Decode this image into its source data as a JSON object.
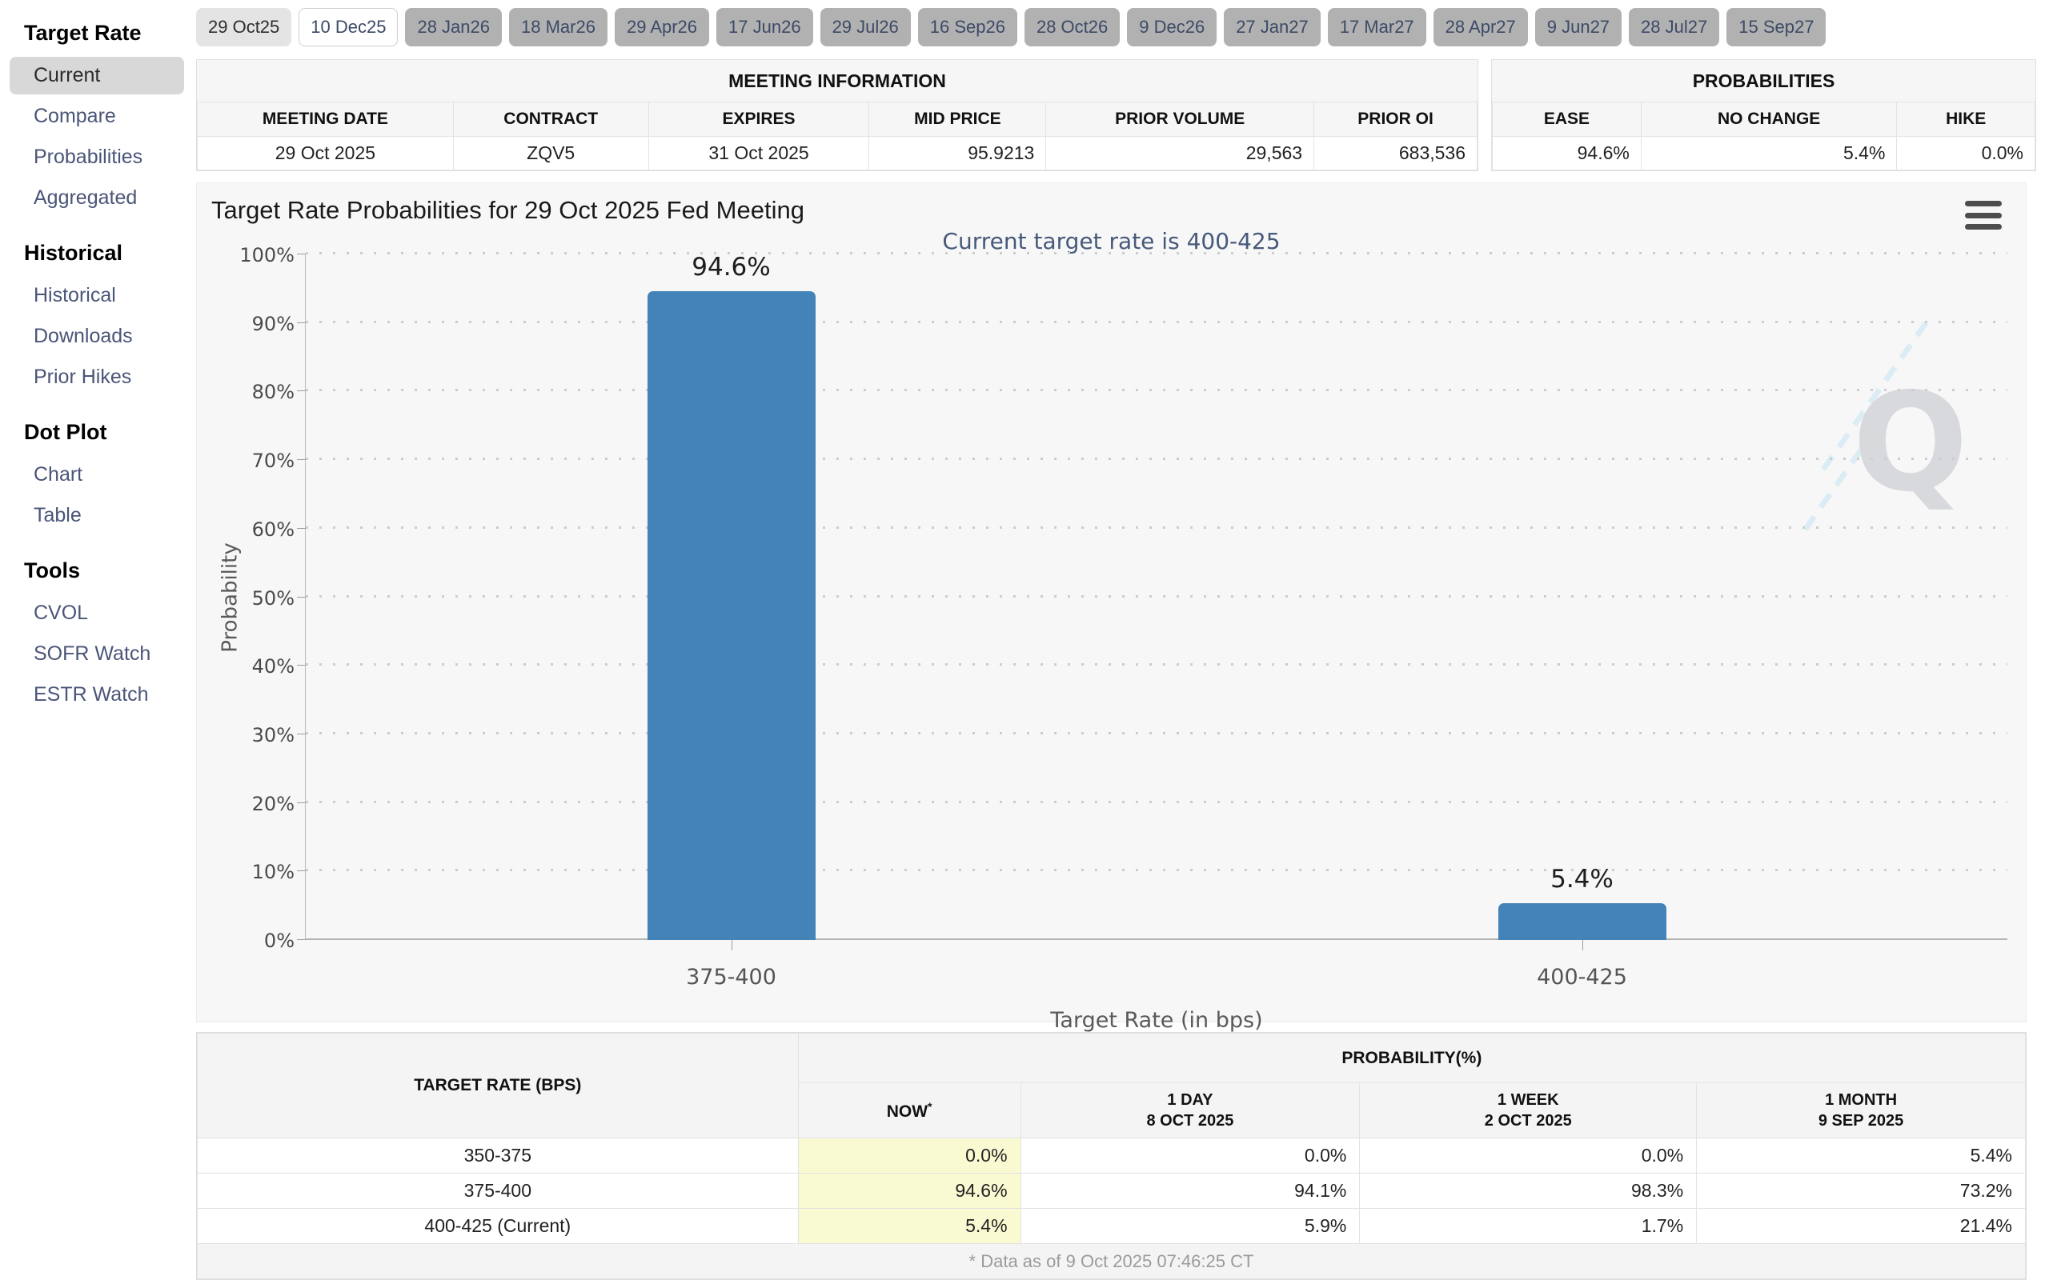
{
  "sidebar": {
    "selected_item": "Current",
    "sections": [
      {
        "title": "Target Rate",
        "items": [
          "Current",
          "Compare",
          "Probabilities",
          "Aggregated"
        ]
      },
      {
        "title": "Historical",
        "items": [
          "Historical",
          "Downloads",
          "Prior Hikes"
        ]
      },
      {
        "title": "Dot Plot",
        "items": [
          "Chart",
          "Table"
        ]
      },
      {
        "title": "Tools",
        "items": [
          "CVOL",
          "SOFR Watch",
          "ESTR Watch"
        ]
      }
    ]
  },
  "tabs": [
    {
      "label": "29 Oct25",
      "state": "selected"
    },
    {
      "label": "10 Dec25",
      "state": "highlighted"
    },
    {
      "label": "28 Jan26",
      "state": "normal"
    },
    {
      "label": "18 Mar26",
      "state": "normal"
    },
    {
      "label": "29 Apr26",
      "state": "normal"
    },
    {
      "label": "17 Jun26",
      "state": "normal"
    },
    {
      "label": "29 Jul26",
      "state": "normal"
    },
    {
      "label": "16 Sep26",
      "state": "normal"
    },
    {
      "label": "28 Oct26",
      "state": "normal"
    },
    {
      "label": "9 Dec26",
      "state": "normal"
    },
    {
      "label": "27 Jan27",
      "state": "normal"
    },
    {
      "label": "17 Mar27",
      "state": "normal"
    },
    {
      "label": "28 Apr27",
      "state": "normal"
    },
    {
      "label": "9 Jun27",
      "state": "normal"
    },
    {
      "label": "28 Jul27",
      "state": "normal"
    },
    {
      "label": "15 Sep27",
      "state": "normal"
    }
  ],
  "meeting_information": {
    "title": "MEETING INFORMATION",
    "headers": [
      "MEETING DATE",
      "CONTRACT",
      "EXPIRES",
      "MID PRICE",
      "PRIOR VOLUME",
      "PRIOR OI"
    ],
    "values": [
      "29 Oct 2025",
      "ZQV5",
      "31 Oct 2025",
      "95.9213",
      "29,563",
      "683,536"
    ]
  },
  "probabilities_summary": {
    "title": "PROBABILITIES",
    "headers": [
      "EASE",
      "NO CHANGE",
      "HIKE"
    ],
    "values": [
      "94.6%",
      "5.4%",
      "0.0%"
    ]
  },
  "chart_data": {
    "type": "bar",
    "title": "Target Rate Probabilities for 29 Oct 2025 Fed Meeting",
    "subtitle": "Current target rate is 400-425",
    "categories": [
      "375-400",
      "400-425"
    ],
    "values": [
      94.6,
      5.4
    ],
    "value_labels": [
      "94.6%",
      "5.4%"
    ],
    "xlabel": "Target Rate (in bps)",
    "ylabel": "Probability",
    "ylim": [
      0,
      100
    ],
    "ytick_step": 10,
    "ytick_suffix": "%",
    "grid": "dotted-horizontal",
    "legend": "none",
    "bar_color": "#4383b7"
  },
  "probability_table": {
    "corner_header": "TARGET RATE (BPS)",
    "group_header": "PROBABILITY(%)",
    "now_label": "NOW",
    "footnote_mark": "*",
    "columns": [
      {
        "line1": "1 DAY",
        "line2": "8 OCT 2025"
      },
      {
        "line1": "1 WEEK",
        "line2": "2 OCT 2025"
      },
      {
        "line1": "1 MONTH",
        "line2": "9 SEP 2025"
      }
    ],
    "rows": [
      {
        "rate": "350-375",
        "now": "0.0%",
        "d1": "0.0%",
        "w1": "0.0%",
        "m1": "5.4%"
      },
      {
        "rate": "375-400",
        "now": "94.6%",
        "d1": "94.1%",
        "w1": "98.3%",
        "m1": "73.2%"
      },
      {
        "rate": "400-425 (Current)",
        "now": "5.4%",
        "d1": "5.9%",
        "w1": "1.7%",
        "m1": "21.4%"
      }
    ],
    "footnote": "* Data as of 9 Oct 2025 07:46:25 CT"
  },
  "icons": {
    "menu": "hamburger-menu-icon",
    "watermark_letter": "Q"
  },
  "colors": {
    "bar": "#4383b7",
    "now_column": "#fafad2",
    "selected_tab_bg": "#e4e4e4",
    "tab_bg": "#b1b1b1",
    "link": "#4a5578",
    "panel_bg": "#f6f6f7",
    "chart_bg": "#f7f7f8"
  }
}
